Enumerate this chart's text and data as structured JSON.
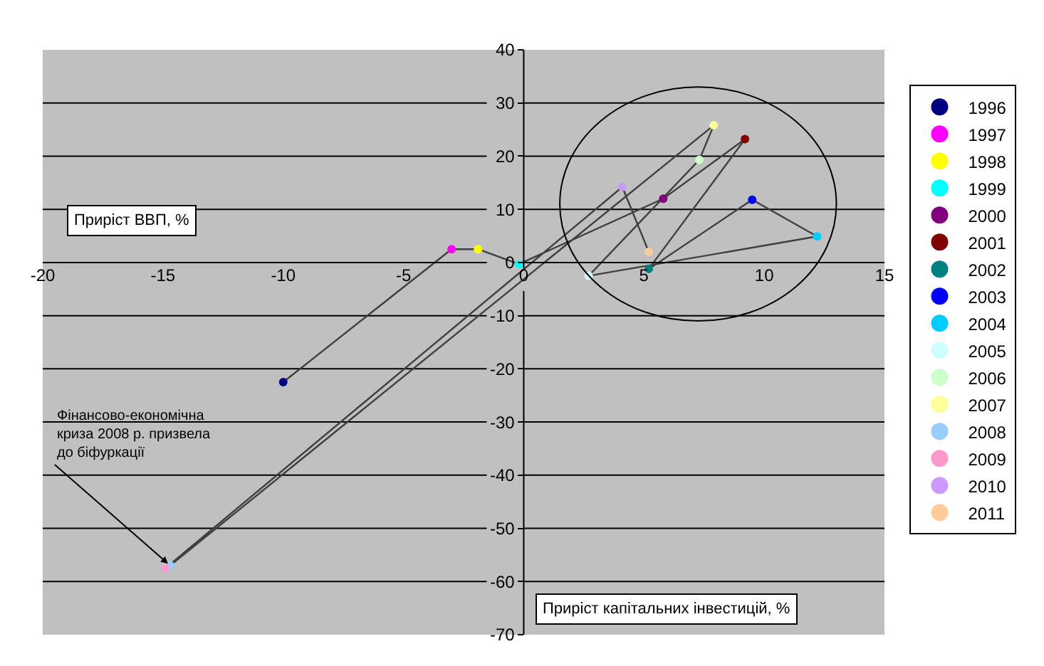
{
  "chart_data": {
    "type": "scatter",
    "xlabel": "Приріст ВВП, %",
    "ylabel": "Приріст капітальних інвестицій, %",
    "xlim": [
      -20,
      15
    ],
    "xticks": [
      -20,
      -15,
      -10,
      -5,
      0,
      5,
      10,
      15
    ],
    "ylim": [
      -70,
      40
    ],
    "yticks": [
      -70,
      -60,
      -50,
      -40,
      -30,
      -20,
      -10,
      0,
      10,
      20,
      30,
      40
    ],
    "grid": "y",
    "legend": "right",
    "marker": "circle",
    "annotations": [
      {
        "text": "Фінансово-економічна\nкриза 2008 р. призвела\nдо біфуркації",
        "x": -14.7,
        "y": -57
      }
    ],
    "series": [
      {
        "type": "line",
        "color": "#404040",
        "marker": "none",
        "x": [
          -10,
          -3,
          -1.9,
          -0.2,
          5.8,
          9.2,
          5.2,
          9.5,
          12.2,
          2.7,
          7.3,
          7.9,
          -14.7,
          -14.9,
          4.1,
          5.2
        ],
        "values": [
          -22.5,
          2.5,
          2.5,
          -0.3,
          12,
          23.2,
          -1.2,
          11.8,
          4.9,
          -2.5,
          19.3,
          25.8,
          -57,
          -57.5,
          14.2,
          2
        ]
      },
      {
        "name": "1996",
        "color": "#000080",
        "x": [
          -10
        ],
        "values": [
          -22.5
        ]
      },
      {
        "name": "1997",
        "color": "#ff00ff",
        "x": [
          -3
        ],
        "values": [
          2.5
        ]
      },
      {
        "name": "1998",
        "color": "#ffff00",
        "x": [
          -1.9
        ],
        "values": [
          2.5
        ]
      },
      {
        "name": "1999",
        "color": "#00ffff",
        "x": [
          -0.2
        ],
        "values": [
          -0.3
        ]
      },
      {
        "name": "2000",
        "color": "#800080",
        "x": [
          5.8
        ],
        "values": [
          12
        ]
      },
      {
        "name": "2001",
        "color": "#800000",
        "x": [
          9.2
        ],
        "values": [
          23.2
        ]
      },
      {
        "name": "2002",
        "color": "#008080",
        "x": [
          5.2
        ],
        "values": [
          -1.2
        ]
      },
      {
        "name": "2003",
        "color": "#0000ff",
        "x": [
          9.5
        ],
        "values": [
          11.8
        ]
      },
      {
        "name": "2004",
        "color": "#00ccff",
        "x": [
          12.2
        ],
        "values": [
          4.9
        ]
      },
      {
        "name": "2005",
        "color": "#ccffff",
        "x": [
          2.7
        ],
        "values": [
          -2.5
        ]
      },
      {
        "name": "2006",
        "color": "#ccffcc",
        "x": [
          7.3
        ],
        "values": [
          19.3
        ]
      },
      {
        "name": "2007",
        "color": "#ffff99",
        "x": [
          7.9
        ],
        "values": [
          25.8
        ]
      },
      {
        "name": "2008",
        "color": "#99ccff",
        "x": [
          -14.7
        ],
        "values": [
          -57
        ]
      },
      {
        "name": "2009",
        "color": "#ff99cc",
        "x": [
          -14.9
        ],
        "values": [
          -57.5
        ]
      },
      {
        "name": "2010",
        "color": "#cc99ff",
        "x": [
          4.1
        ],
        "values": [
          14.2
        ]
      },
      {
        "name": "2011",
        "color": "#ffcc99",
        "x": [
          5.2
        ],
        "values": [
          2
        ]
      }
    ]
  }
}
